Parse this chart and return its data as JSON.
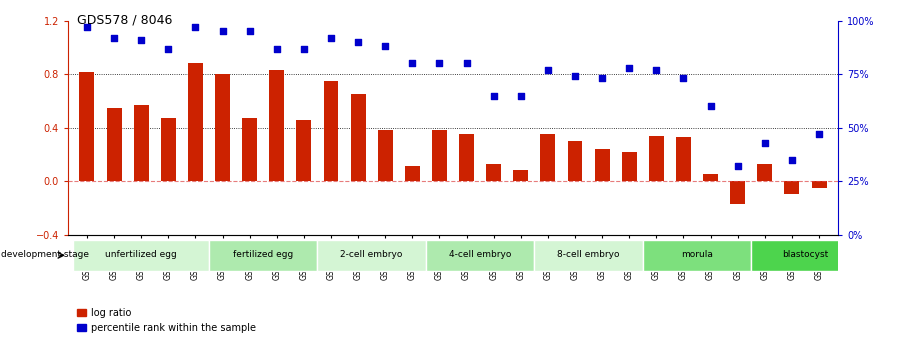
{
  "title": "GDS578 / 8046",
  "samples": [
    "GSM14658",
    "GSM14660",
    "GSM14661",
    "GSM14662",
    "GSM14663",
    "GSM14664",
    "GSM14665",
    "GSM14666",
    "GSM14667",
    "GSM14668",
    "GSM14677",
    "GSM14678",
    "GSM14679",
    "GSM14680",
    "GSM14681",
    "GSM14682",
    "GSM14683",
    "GSM14684",
    "GSM14685",
    "GSM14686",
    "GSM14687",
    "GSM14688",
    "GSM14689",
    "GSM14690",
    "GSM14691",
    "GSM14692",
    "GSM14693",
    "GSM14694"
  ],
  "log_ratio": [
    0.82,
    0.55,
    0.57,
    0.47,
    0.88,
    0.8,
    0.47,
    0.83,
    0.46,
    0.75,
    0.65,
    0.38,
    0.11,
    0.38,
    0.35,
    0.13,
    0.08,
    0.35,
    0.3,
    0.24,
    0.22,
    0.34,
    0.33,
    0.05,
    -0.17,
    0.13,
    -0.1,
    -0.05
  ],
  "percentile_rank": [
    97,
    92,
    91,
    87,
    97,
    95,
    95,
    87,
    87,
    92,
    90,
    88,
    80,
    80,
    80,
    65,
    65,
    77,
    74,
    73,
    78,
    77,
    73,
    60,
    32,
    43,
    35,
    47
  ],
  "stages": [
    {
      "name": "unfertilized egg",
      "start": 0,
      "end": 5,
      "color": "#d4f5d4"
    },
    {
      "name": "fertilized egg",
      "start": 5,
      "end": 9,
      "color": "#aeeaae"
    },
    {
      "name": "2-cell embryo",
      "start": 9,
      "end": 13,
      "color": "#d4f5d4"
    },
    {
      "name": "4-cell embryo",
      "start": 13,
      "end": 17,
      "color": "#aeeaae"
    },
    {
      "name": "8-cell embryo",
      "start": 17,
      "end": 21,
      "color": "#d4f5d4"
    },
    {
      "name": "morula",
      "start": 21,
      "end": 25,
      "color": "#7de07d"
    },
    {
      "name": "blastocyst",
      "start": 25,
      "end": 29,
      "color": "#4dd44d"
    }
  ],
  "bar_color": "#cc2200",
  "scatter_color": "#0000cc",
  "bar_ylim": [
    -0.4,
    1.2
  ],
  "bar_yticks": [
    -0.4,
    0.0,
    0.4,
    0.8,
    1.2
  ],
  "pct_ylim": [
    0,
    100
  ],
  "pct_yticks": [
    0,
    25,
    50,
    75,
    100
  ],
  "hline_y": [
    0.4,
    0.8
  ],
  "zero_line_y": 0.0,
  "bg_color": "#ffffff"
}
